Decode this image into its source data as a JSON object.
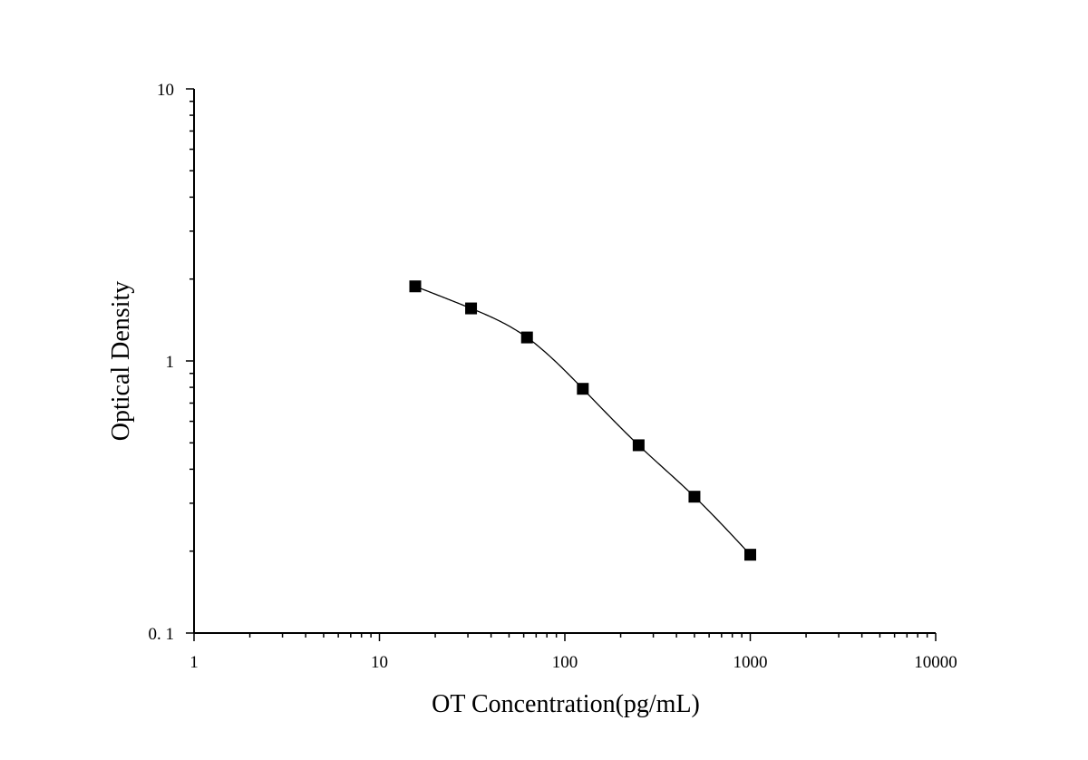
{
  "chart_data": {
    "type": "scatter",
    "title": "",
    "xlabel": "OT Concentration(pg/mL)",
    "ylabel": "Optical Density",
    "xscale": "log",
    "yscale": "log",
    "xlim": [
      1,
      10000
    ],
    "ylim": [
      0.1,
      10
    ],
    "x_ticks": [
      {
        "value": 1,
        "label": "1"
      },
      {
        "value": 10,
        "label": "10"
      },
      {
        "value": 100,
        "label": "100"
      },
      {
        "value": 1000,
        "label": "1000"
      },
      {
        "value": 10000,
        "label": "10000"
      }
    ],
    "y_ticks": [
      {
        "value": 0.1,
        "label": "0. 1"
      },
      {
        "value": 1,
        "label": "1"
      },
      {
        "value": 10,
        "label": "10"
      }
    ],
    "grid": false,
    "legend": "none",
    "marker": "square",
    "marker_color": "#000000",
    "line_color": "#000000",
    "series": [
      {
        "x": [
          15.6,
          31.2,
          62.5,
          125,
          250,
          500,
          1000
        ],
        "y": [
          1.88,
          1.56,
          1.22,
          0.79,
          0.49,
          0.317,
          0.194
        ],
        "fit_curve": true
      }
    ]
  }
}
